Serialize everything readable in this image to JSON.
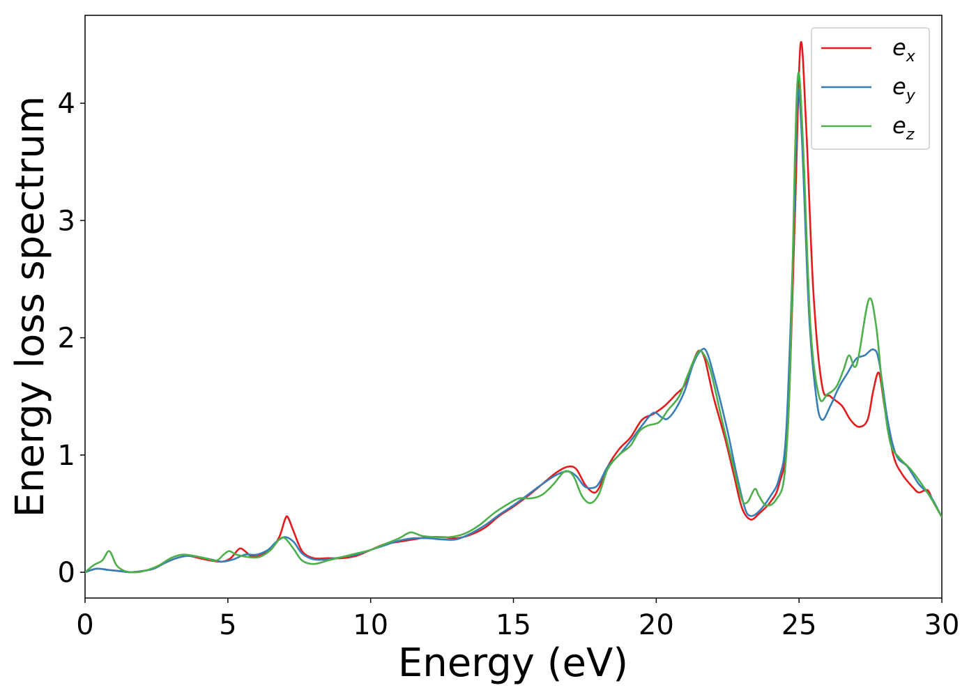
{
  "chart_data": {
    "type": "line",
    "xlabel": "Energy (eV)",
    "ylabel": "Energy loss spectrum",
    "xlim": [
      0,
      30
    ],
    "ylim": [
      -0.22,
      4.75
    ],
    "xticks": [
      "0",
      "5",
      "10",
      "15",
      "20",
      "25",
      "30"
    ],
    "yticks": [
      "0",
      "1",
      "2",
      "3",
      "4"
    ],
    "grid": false,
    "legend": "top-right",
    "series": [
      {
        "name": "e",
        "subscript": "x",
        "color": "#e41a1c",
        "points": [
          [
            0,
            0
          ],
          [
            0.4,
            0.03
          ],
          [
            0.8,
            0.02
          ],
          [
            1.2,
            0.01
          ],
          [
            1.6,
            0.0
          ],
          [
            2.0,
            0.01
          ],
          [
            2.4,
            0.03
          ],
          [
            2.8,
            0.08
          ],
          [
            3.2,
            0.12
          ],
          [
            3.6,
            0.14
          ],
          [
            4.0,
            0.12
          ],
          [
            4.4,
            0.1
          ],
          [
            4.8,
            0.09
          ],
          [
            5.1,
            0.12
          ],
          [
            5.4,
            0.2
          ],
          [
            5.6,
            0.18
          ],
          [
            5.8,
            0.14
          ],
          [
            6.1,
            0.14
          ],
          [
            6.5,
            0.2
          ],
          [
            6.8,
            0.3
          ],
          [
            7.0,
            0.45
          ],
          [
            7.1,
            0.47
          ],
          [
            7.3,
            0.35
          ],
          [
            7.6,
            0.18
          ],
          [
            8.0,
            0.12
          ],
          [
            8.5,
            0.12
          ],
          [
            9.0,
            0.12
          ],
          [
            9.5,
            0.14
          ],
          [
            10.0,
            0.19
          ],
          [
            10.5,
            0.24
          ],
          [
            11.0,
            0.26
          ],
          [
            11.5,
            0.28
          ],
          [
            12.0,
            0.3
          ],
          [
            12.5,
            0.3
          ],
          [
            13.0,
            0.29
          ],
          [
            13.5,
            0.32
          ],
          [
            14.0,
            0.38
          ],
          [
            14.5,
            0.48
          ],
          [
            15.0,
            0.56
          ],
          [
            15.5,
            0.65
          ],
          [
            16.0,
            0.75
          ],
          [
            16.5,
            0.85
          ],
          [
            16.9,
            0.9
          ],
          [
            17.2,
            0.88
          ],
          [
            17.5,
            0.75
          ],
          [
            17.8,
            0.68
          ],
          [
            18.0,
            0.72
          ],
          [
            18.3,
            0.9
          ],
          [
            18.7,
            1.05
          ],
          [
            19.1,
            1.15
          ],
          [
            19.5,
            1.3
          ],
          [
            19.9,
            1.35
          ],
          [
            20.3,
            1.42
          ],
          [
            20.7,
            1.52
          ],
          [
            21.0,
            1.6
          ],
          [
            21.3,
            1.8
          ],
          [
            21.5,
            1.89
          ],
          [
            21.7,
            1.82
          ],
          [
            22.0,
            1.5
          ],
          [
            22.4,
            1.15
          ],
          [
            22.7,
            0.85
          ],
          [
            23.0,
            0.55
          ],
          [
            23.3,
            0.45
          ],
          [
            23.6,
            0.5
          ],
          [
            24.0,
            0.6
          ],
          [
            24.3,
            0.75
          ],
          [
            24.6,
            1.2
          ],
          [
            24.85,
            3.0
          ],
          [
            25.05,
            4.5
          ],
          [
            25.25,
            3.8
          ],
          [
            25.5,
            2.4
          ],
          [
            25.8,
            1.6
          ],
          [
            26.1,
            1.5
          ],
          [
            26.5,
            1.42
          ],
          [
            26.8,
            1.3
          ],
          [
            27.1,
            1.24
          ],
          [
            27.4,
            1.3
          ],
          [
            27.6,
            1.55
          ],
          [
            27.8,
            1.7
          ],
          [
            28.0,
            1.4
          ],
          [
            28.3,
            1.0
          ],
          [
            28.6,
            0.84
          ],
          [
            29.0,
            0.72
          ],
          [
            29.2,
            0.68
          ],
          [
            29.5,
            0.7
          ],
          [
            29.7,
            0.6
          ],
          [
            30.0,
            0.47
          ]
        ]
      },
      {
        "name": "e",
        "subscript": "y",
        "color": "#377eb8",
        "points": [
          [
            0,
            0
          ],
          [
            0.4,
            0.03
          ],
          [
            0.8,
            0.02
          ],
          [
            1.2,
            0.01
          ],
          [
            1.6,
            0.0
          ],
          [
            2.0,
            0.01
          ],
          [
            2.4,
            0.03
          ],
          [
            2.8,
            0.08
          ],
          [
            3.2,
            0.12
          ],
          [
            3.6,
            0.14
          ],
          [
            4.0,
            0.13
          ],
          [
            4.4,
            0.11
          ],
          [
            4.8,
            0.09
          ],
          [
            5.2,
            0.11
          ],
          [
            5.6,
            0.15
          ],
          [
            6.0,
            0.15
          ],
          [
            6.4,
            0.19
          ],
          [
            6.7,
            0.26
          ],
          [
            7.0,
            0.3
          ],
          [
            7.3,
            0.26
          ],
          [
            7.6,
            0.16
          ],
          [
            8.0,
            0.11
          ],
          [
            8.5,
            0.11
          ],
          [
            9.0,
            0.13
          ],
          [
            9.5,
            0.15
          ],
          [
            10.0,
            0.19
          ],
          [
            10.5,
            0.23
          ],
          [
            11.0,
            0.27
          ],
          [
            11.5,
            0.29
          ],
          [
            12.0,
            0.29
          ],
          [
            12.5,
            0.28
          ],
          [
            13.0,
            0.28
          ],
          [
            13.5,
            0.33
          ],
          [
            14.0,
            0.4
          ],
          [
            14.5,
            0.49
          ],
          [
            15.0,
            0.57
          ],
          [
            15.5,
            0.66
          ],
          [
            16.0,
            0.75
          ],
          [
            16.5,
            0.83
          ],
          [
            16.9,
            0.86
          ],
          [
            17.2,
            0.82
          ],
          [
            17.5,
            0.73
          ],
          [
            17.8,
            0.72
          ],
          [
            18.0,
            0.76
          ],
          [
            18.3,
            0.9
          ],
          [
            18.7,
            1.0
          ],
          [
            19.1,
            1.12
          ],
          [
            19.5,
            1.25
          ],
          [
            19.9,
            1.36
          ],
          [
            20.2,
            1.32
          ],
          [
            20.4,
            1.31
          ],
          [
            20.7,
            1.4
          ],
          [
            21.0,
            1.55
          ],
          [
            21.3,
            1.78
          ],
          [
            21.6,
            1.9
          ],
          [
            21.8,
            1.86
          ],
          [
            22.1,
            1.6
          ],
          [
            22.5,
            1.2
          ],
          [
            22.8,
            0.85
          ],
          [
            23.1,
            0.55
          ],
          [
            23.3,
            0.48
          ],
          [
            23.6,
            0.52
          ],
          [
            24.0,
            0.65
          ],
          [
            24.3,
            0.8
          ],
          [
            24.55,
            1.2
          ],
          [
            24.8,
            2.8
          ],
          [
            24.95,
            4.07
          ],
          [
            25.1,
            3.7
          ],
          [
            25.35,
            2.2
          ],
          [
            25.6,
            1.5
          ],
          [
            25.8,
            1.3
          ],
          [
            26.1,
            1.42
          ],
          [
            26.4,
            1.58
          ],
          [
            26.7,
            1.7
          ],
          [
            27.0,
            1.82
          ],
          [
            27.3,
            1.85
          ],
          [
            27.6,
            1.9
          ],
          [
            27.8,
            1.8
          ],
          [
            28.1,
            1.3
          ],
          [
            28.4,
            1.0
          ],
          [
            28.8,
            0.9
          ],
          [
            29.2,
            0.75
          ],
          [
            29.6,
            0.65
          ],
          [
            30.0,
            0.47
          ]
        ]
      },
      {
        "name": "e",
        "subscript": "z",
        "color": "#4daf4a",
        "points": [
          [
            0,
            0
          ],
          [
            0.3,
            0.06
          ],
          [
            0.6,
            0.1
          ],
          [
            0.85,
            0.18
          ],
          [
            1.1,
            0.06
          ],
          [
            1.4,
            0.01
          ],
          [
            1.8,
            0.0
          ],
          [
            2.2,
            0.02
          ],
          [
            2.6,
            0.06
          ],
          [
            3.0,
            0.12
          ],
          [
            3.4,
            0.15
          ],
          [
            3.8,
            0.14
          ],
          [
            4.2,
            0.12
          ],
          [
            4.6,
            0.1
          ],
          [
            4.85,
            0.15
          ],
          [
            5.05,
            0.18
          ],
          [
            5.3,
            0.15
          ],
          [
            5.7,
            0.13
          ],
          [
            6.1,
            0.13
          ],
          [
            6.5,
            0.19
          ],
          [
            6.8,
            0.28
          ],
          [
            7.0,
            0.29
          ],
          [
            7.3,
            0.2
          ],
          [
            7.6,
            0.1
          ],
          [
            8.0,
            0.07
          ],
          [
            8.5,
            0.1
          ],
          [
            9.0,
            0.13
          ],
          [
            9.5,
            0.16
          ],
          [
            10.0,
            0.19
          ],
          [
            10.5,
            0.24
          ],
          [
            11.0,
            0.29
          ],
          [
            11.4,
            0.34
          ],
          [
            11.8,
            0.31
          ],
          [
            12.3,
            0.3
          ],
          [
            12.8,
            0.3
          ],
          [
            13.3,
            0.33
          ],
          [
            13.8,
            0.4
          ],
          [
            14.3,
            0.5
          ],
          [
            14.8,
            0.58
          ],
          [
            15.2,
            0.63
          ],
          [
            15.6,
            0.63
          ],
          [
            16.0,
            0.66
          ],
          [
            16.4,
            0.75
          ],
          [
            16.8,
            0.86
          ],
          [
            17.1,
            0.82
          ],
          [
            17.4,
            0.65
          ],
          [
            17.7,
            0.59
          ],
          [
            18.0,
            0.67
          ],
          [
            18.3,
            0.88
          ],
          [
            18.7,
            1.0
          ],
          [
            19.1,
            1.08
          ],
          [
            19.4,
            1.2
          ],
          [
            19.7,
            1.25
          ],
          [
            20.1,
            1.28
          ],
          [
            20.4,
            1.38
          ],
          [
            20.8,
            1.5
          ],
          [
            21.1,
            1.68
          ],
          [
            21.4,
            1.85
          ],
          [
            21.6,
            1.88
          ],
          [
            21.9,
            1.72
          ],
          [
            22.3,
            1.3
          ],
          [
            22.7,
            0.9
          ],
          [
            23.0,
            0.62
          ],
          [
            23.2,
            0.6
          ],
          [
            23.45,
            0.71
          ],
          [
            23.6,
            0.65
          ],
          [
            23.85,
            0.57
          ],
          [
            24.2,
            0.62
          ],
          [
            24.5,
            0.85
          ],
          [
            24.7,
            1.8
          ],
          [
            24.85,
            3.5
          ],
          [
            24.98,
            4.26
          ],
          [
            25.15,
            3.6
          ],
          [
            25.4,
            2.1
          ],
          [
            25.7,
            1.5
          ],
          [
            26.0,
            1.52
          ],
          [
            26.3,
            1.58
          ],
          [
            26.55,
            1.72
          ],
          [
            26.75,
            1.85
          ],
          [
            26.95,
            1.75
          ],
          [
            27.1,
            1.86
          ],
          [
            27.45,
            2.33
          ],
          [
            27.7,
            2.1
          ],
          [
            27.95,
            1.5
          ],
          [
            28.2,
            1.1
          ],
          [
            28.5,
            0.98
          ],
          [
            28.9,
            0.88
          ],
          [
            29.3,
            0.75
          ],
          [
            29.7,
            0.6
          ],
          [
            30.0,
            0.47
          ]
        ]
      }
    ]
  }
}
